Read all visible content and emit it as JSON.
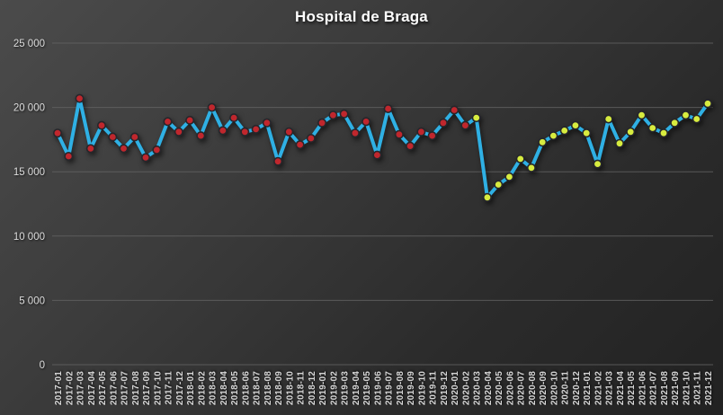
{
  "window": {
    "title": "Hospital de Braga"
  },
  "colors": {
    "background_top_left": "#4b4b4b",
    "background_bottom_right": "#222222",
    "title_text": "#ffffff",
    "axis_text": "#d9d9d9",
    "gridline": "#646464",
    "line": "#2fb0e4",
    "marker_early": "#c0272d",
    "marker_late": "#d7ec3f",
    "marker_outline": "#26262b"
  },
  "chart_data": {
    "type": "line",
    "title": "Hospital de Braga",
    "xlabel": "",
    "ylabel": "",
    "ylim": [
      0,
      25000
    ],
    "grid": true,
    "legend_position": "none",
    "y_ticks": [
      {
        "value": 0,
        "label": "0"
      },
      {
        "value": 5000,
        "label": "5 000"
      },
      {
        "value": 10000,
        "label": "10 000"
      },
      {
        "value": 15000,
        "label": "15 000"
      },
      {
        "value": 20000,
        "label": "20 000"
      },
      {
        "value": 25000,
        "label": "25 000"
      }
    ],
    "categories": [
      "2017-01",
      "2017-02",
      "2017-03",
      "2017-04",
      "2017-05",
      "2017-06",
      "2017-07",
      "2017-08",
      "2017-09",
      "2017-10",
      "2017-11",
      "2017-12",
      "2018-01",
      "2018-02",
      "2018-03",
      "2018-04",
      "2018-05",
      "2018-06",
      "2018-07",
      "2018-08",
      "2018-09",
      "2018-10",
      "2018-11",
      "2018-12",
      "2019-01",
      "2019-02",
      "2019-03",
      "2019-04",
      "2019-05",
      "2019-06",
      "2019-07",
      "2019-08",
      "2019-09",
      "2019-10",
      "2019-11",
      "2019-12",
      "2020-01",
      "2020-02",
      "2020-03",
      "2020-04",
      "2020-05",
      "2020-06",
      "2020-07",
      "2020-08",
      "2020-09",
      "2020-10",
      "2020-11",
      "2020-12",
      "2021-01",
      "2021-02",
      "2021-03",
      "2021-04",
      "2021-05",
      "2021-06",
      "2021-07",
      "2021-08",
      "2021-09",
      "2021-10",
      "2021-11",
      "2021-12"
    ],
    "values": [
      18000,
      16200,
      20700,
      16800,
      18600,
      17700,
      16800,
      17700,
      16100,
      16700,
      18900,
      18100,
      19000,
      17800,
      20000,
      18200,
      19200,
      18100,
      18300,
      18800,
      15800,
      18100,
      17100,
      17600,
      18800,
      19400,
      19500,
      18000,
      18900,
      16300,
      19900,
      17900,
      17000,
      18100,
      17800,
      18800,
      19800,
      18600,
      19200,
      13000,
      14000,
      14600,
      16000,
      15300,
      17300,
      17800,
      18200,
      18600,
      18000,
      15600,
      19100,
      17200,
      18100,
      19400,
      18400,
      18000,
      18800,
      19400,
      19100,
      20300
    ],
    "line_color": "#2fb0e4",
    "marker_segments": [
      {
        "start_index": 0,
        "end_index": 37,
        "color": "#c0272d",
        "name": "pre-2020-03-red-markers"
      },
      {
        "start_index": 38,
        "end_index": 59,
        "color": "#d7ec3f",
        "name": "from-2020-03-green-markers"
      }
    ]
  }
}
